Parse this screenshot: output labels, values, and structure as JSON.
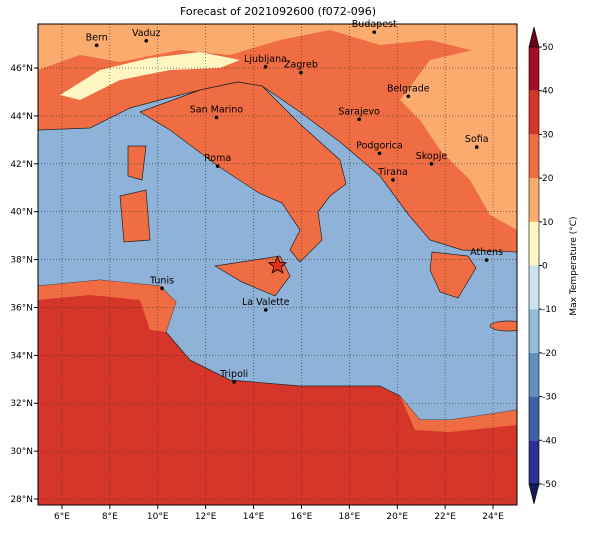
{
  "chart_data": {
    "type": "map",
    "title": "Forecast of 2021092600 (f072-096)",
    "xlim": [
      5,
      25
    ],
    "ylim": [
      27.75,
      47.84
    ],
    "xticks": [
      {
        "value": 6,
        "label": "6°E"
      },
      {
        "value": 8,
        "label": "8°E"
      },
      {
        "value": 10,
        "label": "10°E"
      },
      {
        "value": 12,
        "label": "12°E"
      },
      {
        "value": 14,
        "label": "14°E"
      },
      {
        "value": 16,
        "label": "16°E"
      },
      {
        "value": 18,
        "label": "18°E"
      },
      {
        "value": 20,
        "label": "20°E"
      },
      {
        "value": 22,
        "label": "22°E"
      },
      {
        "value": 24,
        "label": "24°E"
      }
    ],
    "yticks": [
      {
        "value": 28,
        "label": "28°N"
      },
      {
        "value": 30,
        "label": "30°N"
      },
      {
        "value": 32,
        "label": "32°N"
      },
      {
        "value": 34,
        "label": "34°N"
      },
      {
        "value": 36,
        "label": "36°N"
      },
      {
        "value": 38,
        "label": "38°N"
      },
      {
        "value": 40,
        "label": "40°N"
      },
      {
        "value": 42,
        "label": "42°N"
      },
      {
        "value": 44,
        "label": "44°N"
      },
      {
        "value": 46,
        "label": "46°N"
      }
    ],
    "grid": true,
    "cities": [
      {
        "name": "Bern",
        "lon": 7.45,
        "lat": 46.95
      },
      {
        "name": "Vaduz",
        "lon": 9.52,
        "lat": 47.14
      },
      {
        "name": "Budapest",
        "lon": 19.04,
        "lat": 47.5
      },
      {
        "name": "Ljubljana",
        "lon": 14.5,
        "lat": 46.05
      },
      {
        "name": "Zagreb",
        "lon": 15.98,
        "lat": 45.81
      },
      {
        "name": "Belgrade",
        "lon": 20.46,
        "lat": 44.82
      },
      {
        "name": "San Marino",
        "lon": 12.45,
        "lat": 43.94
      },
      {
        "name": "Sarajevo",
        "lon": 18.41,
        "lat": 43.86
      },
      {
        "name": "Sofia",
        "lon": 23.32,
        "lat": 42.7
      },
      {
        "name": "Roma",
        "lon": 12.5,
        "lat": 41.9
      },
      {
        "name": "Podgorica",
        "lon": 19.26,
        "lat": 42.44
      },
      {
        "name": "Skopje",
        "lon": 21.43,
        "lat": 42.0
      },
      {
        "name": "Tirana",
        "lon": 19.82,
        "lat": 41.33
      },
      {
        "name": "Athens",
        "lon": 23.73,
        "lat": 37.98
      },
      {
        "name": "Tunis",
        "lon": 10.18,
        "lat": 36.8
      },
      {
        "name": "La Valette",
        "lon": 14.51,
        "lat": 35.9
      },
      {
        "name": "Tripoli",
        "lon": 13.19,
        "lat": 32.89
      }
    ],
    "star": {
      "lon": 15.0,
      "lat": 37.75
    },
    "colorbar": {
      "label": "Max Temperature (°C)",
      "ticks": [
        -50,
        -40,
        -30,
        -20,
        -10,
        0,
        10,
        20,
        30,
        40,
        50
      ],
      "colors": [
        "#2b3190",
        "#3f60a9",
        "#6290c2",
        "#93bcda",
        "#c8e5ef",
        "#fff6c2",
        "#fbab6e",
        "#f06c42",
        "#d6362a",
        "#a40f25"
      ],
      "under_color": "#16195e",
      "over_color": "#6e0018"
    }
  }
}
